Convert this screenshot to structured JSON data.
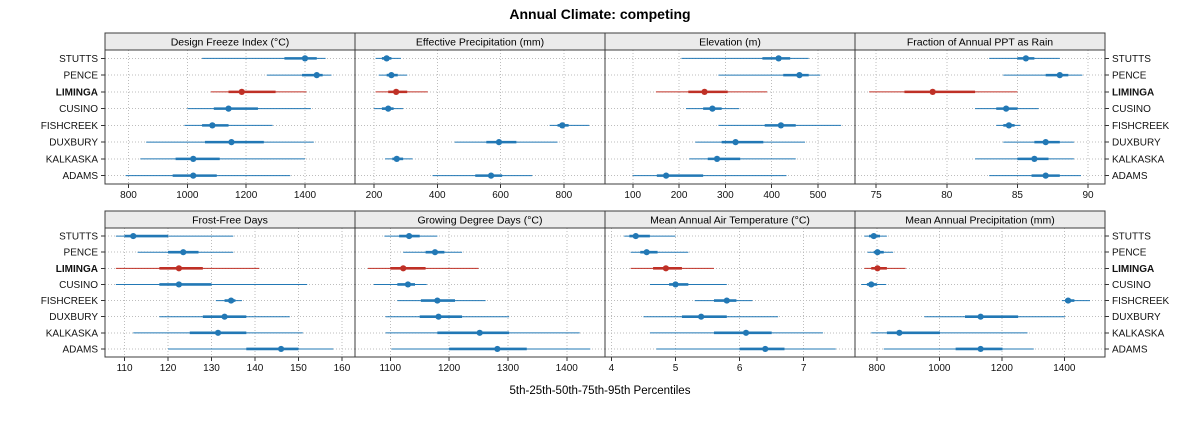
{
  "chart_data": {
    "type": "scatter",
    "subtype": "trellis-percentile-dotplot",
    "title": "Annual Climate: competing",
    "caption": "5th-25th-50th-75th-95th Percentiles",
    "percentiles": [
      5,
      25,
      50,
      75,
      95
    ],
    "sites_top_to_bottom": [
      "STUTTS",
      "PENCE",
      "LIMINGA",
      "CUSINO",
      "FISHCREEK",
      "DUXBURY",
      "KALKASKA",
      "ADAMS"
    ],
    "highlight_site": "LIMINGA",
    "colors": {
      "series": "#2278b5",
      "highlight": "#bf3026",
      "grid": "#bdbdbd",
      "strip_bg": "#ebebeb",
      "border": "#3c3c3c",
      "tick_text": "#111111"
    },
    "layout": {
      "rows": 2,
      "cols": 4,
      "grid": "dotted",
      "legend": "none"
    },
    "panels": [
      {
        "title": "Design Freeze Index (°C)",
        "row": 0,
        "col": 0,
        "domain": [
          720,
          1570
        ],
        "ticks": [
          800,
          1000,
          1200,
          1400
        ],
        "values": {
          "STUTTS": [
            1050,
            1330,
            1400,
            1440,
            1470
          ],
          "PENCE": [
            1270,
            1390,
            1440,
            1460,
            1490
          ],
          "LIMINGA": [
            1080,
            1140,
            1185,
            1300,
            1405
          ],
          "CUSINO": [
            1000,
            1090,
            1140,
            1240,
            1420
          ],
          "FISHCREEK": [
            990,
            1050,
            1085,
            1140,
            1290
          ],
          "DUXBURY": [
            860,
            1060,
            1150,
            1260,
            1430
          ],
          "KALKASKA": [
            840,
            960,
            1020,
            1110,
            1400
          ],
          "ADAMS": [
            790,
            950,
            1020,
            1100,
            1350
          ]
        }
      },
      {
        "title": "Effective Precipitation (mm)",
        "row": 0,
        "col": 1,
        "domain": [
          140,
          930
        ],
        "ticks": [
          200,
          400,
          600,
          800
        ],
        "values": {
          "STUTTS": [
            205,
            225,
            240,
            255,
            285
          ],
          "PENCE": [
            215,
            240,
            255,
            275,
            305
          ],
          "LIMINGA": [
            205,
            245,
            270,
            305,
            370
          ],
          "CUSINO": [
            200,
            225,
            245,
            262,
            292
          ],
          "FISHCREEK": [
            755,
            780,
            795,
            815,
            880
          ],
          "DUXBURY": [
            455,
            555,
            595,
            650,
            780
          ],
          "KALKASKA": [
            235,
            258,
            272,
            292,
            322
          ],
          "ADAMS": [
            385,
            520,
            570,
            605,
            700
          ]
        }
      },
      {
        "title": "Elevation (m)",
        "row": 0,
        "col": 2,
        "domain": [
          40,
          580
        ],
        "ticks": [
          100,
          200,
          300,
          400,
          500
        ],
        "values": {
          "STUTTS": [
            205,
            380,
            415,
            440,
            480
          ],
          "PENCE": [
            285,
            425,
            460,
            480,
            505
          ],
          "LIMINGA": [
            150,
            220,
            255,
            305,
            390
          ],
          "CUSINO": [
            215,
            252,
            272,
            292,
            330
          ],
          "FISHCREEK": [
            285,
            385,
            420,
            452,
            550
          ],
          "DUXBURY": [
            235,
            292,
            322,
            382,
            472
          ],
          "KALKASKA": [
            222,
            262,
            282,
            332,
            452
          ],
          "ADAMS": [
            100,
            152,
            172,
            252,
            432
          ]
        }
      },
      {
        "title": "Fraction of Annual PPT as Rain",
        "row": 0,
        "col": 3,
        "domain": [
          73.5,
          91.2
        ],
        "ticks": [
          75,
          80,
          85,
          90
        ],
        "values": {
          "STUTTS": [
            83,
            85,
            85.6,
            86.2,
            88
          ],
          "PENCE": [
            84,
            87,
            88,
            88.6,
            89.6
          ],
          "LIMINGA": [
            74.5,
            77,
            79,
            82,
            85
          ],
          "CUSINO": [
            82,
            83.5,
            84.2,
            85,
            86.5
          ],
          "FISHCREEK": [
            83.5,
            84,
            84.4,
            84.8,
            85.2
          ],
          "DUXBURY": [
            84,
            86.2,
            87,
            88,
            89
          ],
          "KALKASKA": [
            82,
            85,
            86.2,
            87.2,
            89
          ],
          "ADAMS": [
            83,
            86,
            87,
            88,
            89.5
          ]
        }
      },
      {
        "title": "Frost-Free Days",
        "row": 1,
        "col": 0,
        "domain": [
          105.5,
          163
        ],
        "ticks": [
          110,
          120,
          130,
          140,
          150,
          160
        ],
        "values": {
          "STUTTS": [
            108,
            110,
            112,
            120,
            135
          ],
          "PENCE": [
            113,
            120,
            123.5,
            127,
            135
          ],
          "LIMINGA": [
            108,
            118,
            122.5,
            128,
            141
          ],
          "CUSINO": [
            108,
            118,
            122.5,
            130,
            152
          ],
          "FISHCREEK": [
            131,
            133,
            134.5,
            135.5,
            137
          ],
          "DUXBURY": [
            118,
            128,
            133,
            138,
            148
          ],
          "KALKASKA": [
            112,
            125,
            131.5,
            138,
            151
          ],
          "ADAMS": [
            120,
            138,
            146,
            150,
            158
          ]
        }
      },
      {
        "title": "Growing Degree Days (°C)",
        "row": 1,
        "col": 1,
        "domain": [
          1040,
          1465
        ],
        "ticks": [
          1100,
          1200,
          1300,
          1400
        ],
        "values": {
          "STUTTS": [
            1090,
            1115,
            1132,
            1150,
            1180
          ],
          "PENCE": [
            1122,
            1160,
            1176,
            1192,
            1222
          ],
          "LIMINGA": [
            1062,
            1100,
            1122,
            1160,
            1250
          ],
          "CUSINO": [
            1072,
            1112,
            1130,
            1142,
            1162
          ],
          "FISHCREEK": [
            1112,
            1152,
            1180,
            1210,
            1262
          ],
          "DUXBURY": [
            1092,
            1150,
            1182,
            1222,
            1302
          ],
          "KALKASKA": [
            1092,
            1180,
            1252,
            1302,
            1422
          ],
          "ADAMS": [
            1102,
            1200,
            1282,
            1332,
            1440
          ]
        }
      },
      {
        "title": "Mean Annual Air Temperature (°C)",
        "row": 1,
        "col": 2,
        "domain": [
          3.9,
          7.8
        ],
        "ticks": [
          4,
          5,
          6,
          7
        ],
        "values": {
          "STUTTS": [
            4.2,
            4.28,
            4.38,
            4.6,
            5.0
          ],
          "PENCE": [
            4.3,
            4.45,
            4.55,
            4.72,
            5.2
          ],
          "LIMINGA": [
            4.3,
            4.65,
            4.85,
            5.1,
            5.6
          ],
          "CUSINO": [
            4.6,
            4.9,
            5.0,
            5.2,
            5.8
          ],
          "FISHCREEK": [
            5.3,
            5.6,
            5.8,
            5.95,
            6.2
          ],
          "DUXBURY": [
            4.5,
            5.1,
            5.4,
            5.8,
            6.6
          ],
          "KALKASKA": [
            4.6,
            5.6,
            6.1,
            6.5,
            7.3
          ],
          "ADAMS": [
            4.7,
            6.0,
            6.4,
            6.7,
            7.5
          ]
        }
      },
      {
        "title": "Mean Annual Precipitation (mm)",
        "row": 1,
        "col": 3,
        "domain": [
          730,
          1530
        ],
        "ticks": [
          800,
          1000,
          1200,
          1400
        ],
        "values": {
          "STUTTS": [
            760,
            775,
            790,
            810,
            832
          ],
          "PENCE": [
            770,
            790,
            802,
            822,
            852
          ],
          "LIMINGA": [
            760,
            782,
            802,
            832,
            892
          ],
          "CUSINO": [
            750,
            768,
            782,
            800,
            830
          ],
          "FISHCREEK": [
            1392,
            1402,
            1412,
            1432,
            1482
          ],
          "DUXBURY": [
            952,
            1082,
            1132,
            1252,
            1402
          ],
          "KALKASKA": [
            782,
            832,
            872,
            1002,
            1282
          ],
          "ADAMS": [
            822,
            1052,
            1132,
            1202,
            1302
          ]
        }
      }
    ]
  }
}
